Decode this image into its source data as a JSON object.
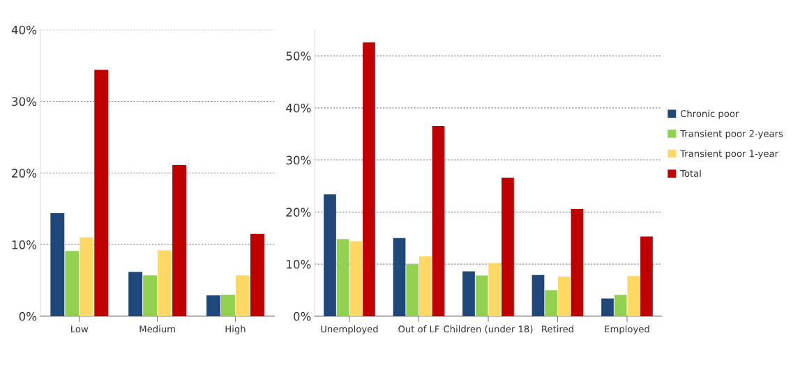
{
  "chart_data": [
    {
      "type": "bar",
      "categories": [
        "Low",
        "Medium",
        "High"
      ],
      "series": [
        {
          "color": "#1f477a",
          "values": [
            14.4,
            6.2,
            2.9
          ]
        },
        {
          "color": "#92d050",
          "values": [
            9.1,
            5.7,
            3.0
          ]
        },
        {
          "color": "#fdd865",
          "values": [
            11.0,
            9.2,
            5.7
          ]
        },
        {
          "color": "#c00000",
          "values": [
            34.4,
            21.1,
            11.5
          ]
        }
      ],
      "ylim": [
        0,
        40
      ],
      "yticks": [
        {
          "value": 0,
          "label": "0%"
        },
        {
          "value": 10,
          "label": "10%"
        },
        {
          "value": 20,
          "label": "20%"
        },
        {
          "value": 30,
          "label": "30%"
        },
        {
          "value": 40,
          "label": "40%"
        }
      ],
      "grid": "y",
      "legend": false
    },
    {
      "type": "bar",
      "categories": [
        "Unemployed",
        "Out of LF",
        "Children (under 18)",
        "Retired",
        "Employed"
      ],
      "series": [
        {
          "name": "Chronic poor",
          "color": "#1f477a",
          "values": [
            23.4,
            15.0,
            8.6,
            7.9,
            3.4
          ]
        },
        {
          "name": "Transient poor 2-years",
          "color": "#92d050",
          "values": [
            14.8,
            10.0,
            7.8,
            5.0,
            4.1
          ]
        },
        {
          "name": "Transient poor 1-year",
          "color": "#fdd865",
          "values": [
            14.4,
            11.5,
            10.2,
            7.6,
            7.7
          ]
        },
        {
          "name": "Total",
          "color": "#c00000",
          "values": [
            52.6,
            36.5,
            26.6,
            20.6,
            15.3
          ]
        }
      ],
      "ylim": [
        0,
        55
      ],
      "yticks": [
        {
          "value": 0,
          "label": "0%"
        },
        {
          "value": 10,
          "label": "10%"
        },
        {
          "value": 20,
          "label": "20%"
        },
        {
          "value": 30,
          "label": "30%"
        },
        {
          "value": 40,
          "label": "40%"
        },
        {
          "value": 50,
          "label": "50%"
        }
      ],
      "grid": "y",
      "legend": "right"
    }
  ]
}
